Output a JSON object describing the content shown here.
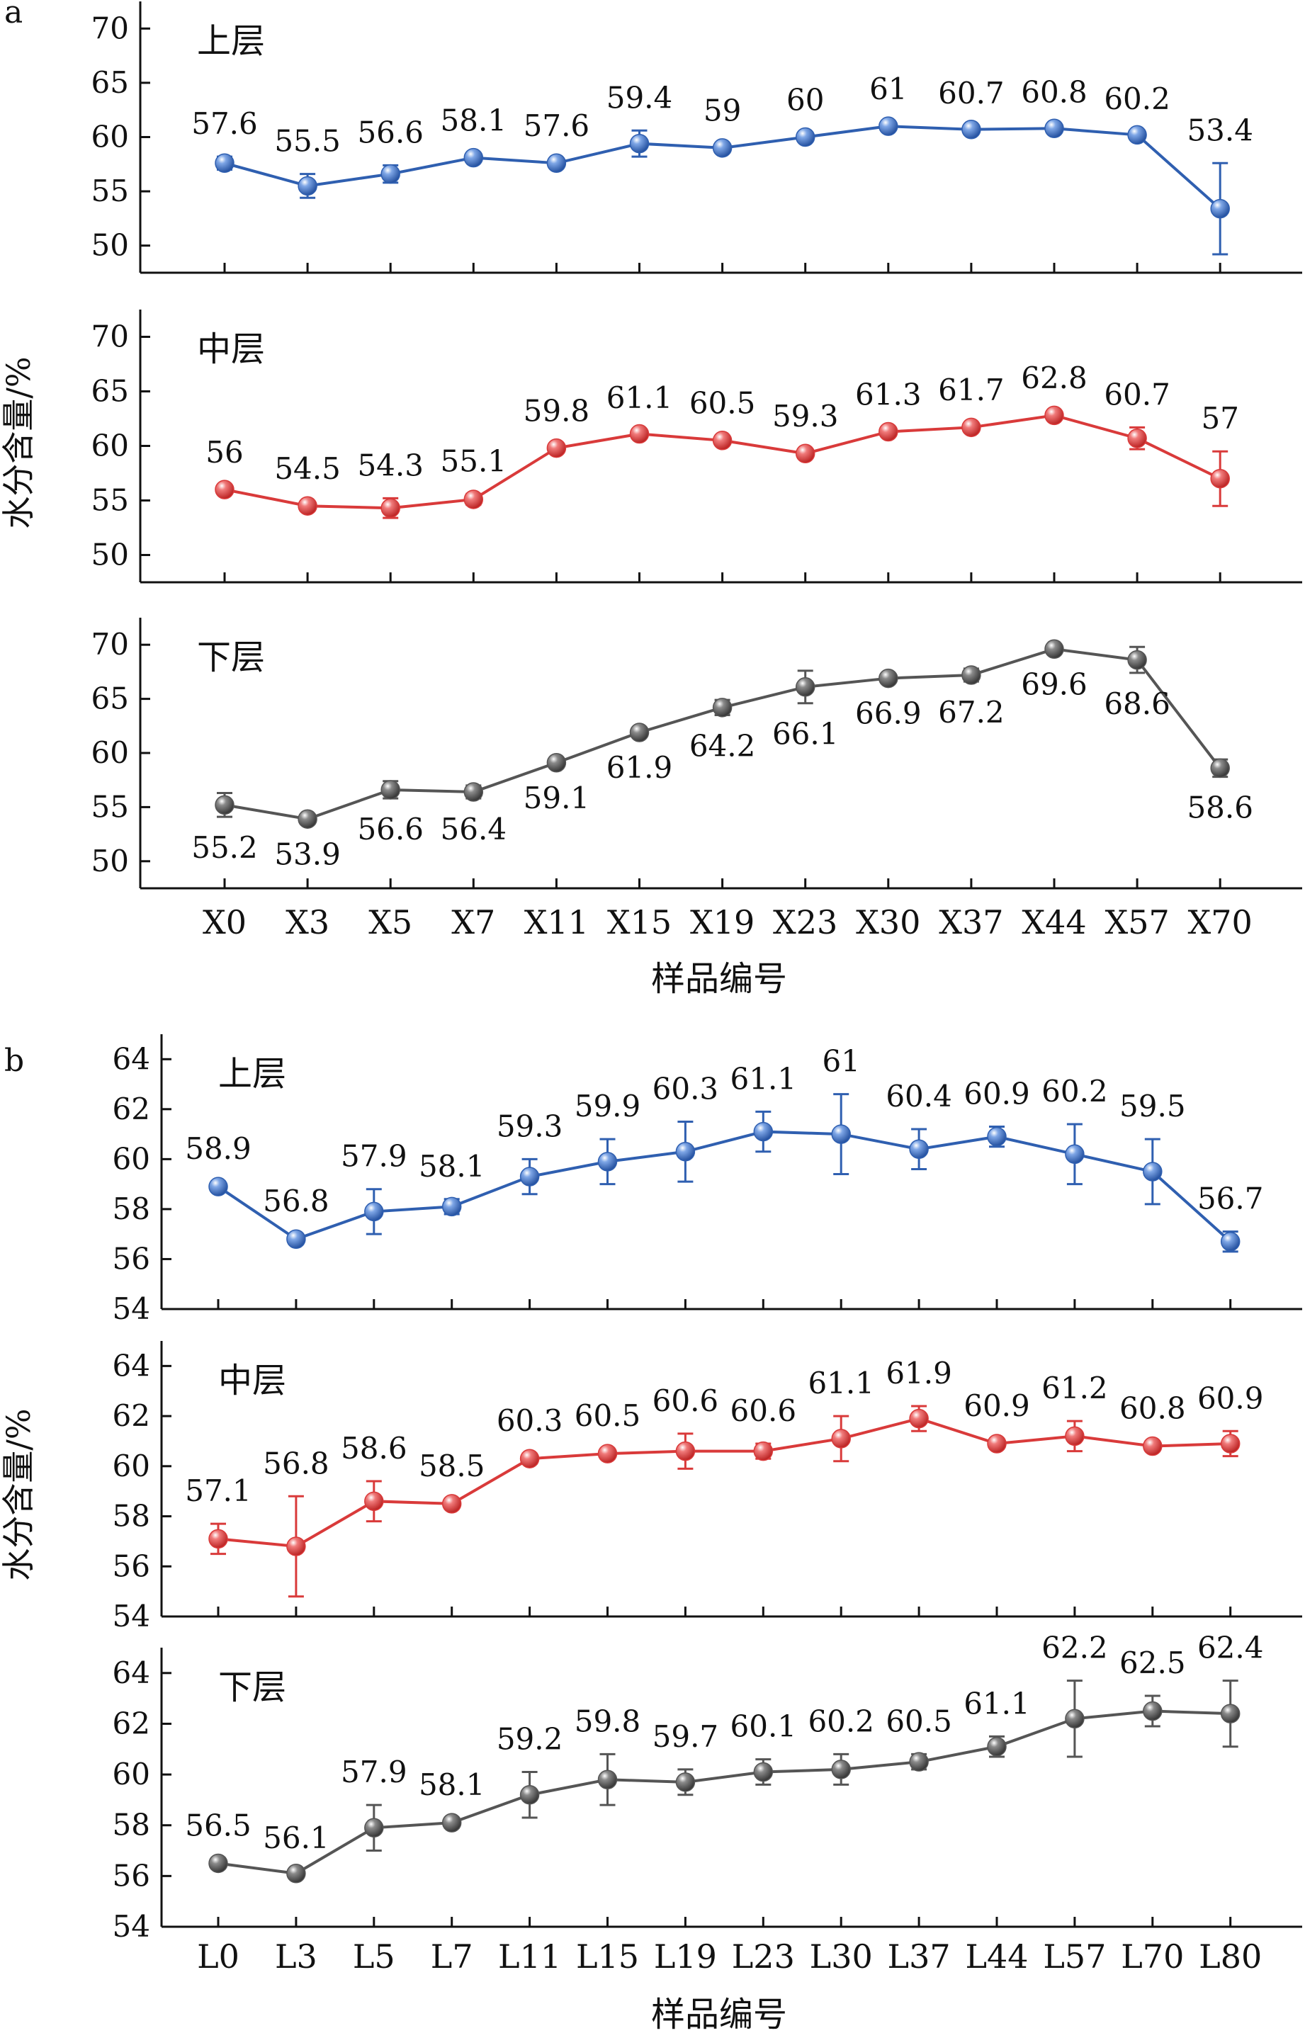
{
  "chart_data": [
    {
      "type": "line",
      "panel_label": "a",
      "ylabel": "水分含量/%",
      "xlabel": "样品编号",
      "categories": [
        "X0",
        "X3",
        "X5",
        "X7",
        "X11",
        "X15",
        "X19",
        "X23",
        "X30",
        "X37",
        "X44",
        "X57",
        "X70"
      ],
      "ylim": [
        47.5,
        72.5
      ],
      "yticks": [
        50,
        55,
        60,
        65,
        70
      ],
      "grid": false,
      "error_bars": true,
      "series": [
        {
          "name": "上层",
          "color": "#2f5fb0",
          "values": [
            57.6,
            55.5,
            56.6,
            58.1,
            57.6,
            59.4,
            59,
            60,
            61,
            60.7,
            60.8,
            60.2,
            53.4
          ],
          "labels": [
            "57.6",
            "55.5",
            "56.6",
            "58.1",
            "57.6",
            "59.4",
            "59",
            "60",
            "61",
            "60.7",
            "60.8",
            "60.2",
            "53.4"
          ],
          "errors": [
            0.6,
            1.1,
            0.8,
            0.4,
            0.4,
            1.2,
            0.4,
            0.4,
            0.4,
            0.3,
            0.3,
            0.3,
            4.2
          ]
        },
        {
          "name": "中层",
          "color": "#d93a3a",
          "values": [
            56,
            54.5,
            54.3,
            55.1,
            59.8,
            61.1,
            60.5,
            59.3,
            61.3,
            61.7,
            62.8,
            60.7,
            57
          ],
          "labels": [
            "56",
            "54.5",
            "54.3",
            "55.1",
            "59.8",
            "61.1",
            "60.5",
            "59.3",
            "61.3",
            "61.7",
            "62.8",
            "60.7",
            "57"
          ],
          "errors": [
            0.4,
            0.4,
            0.9,
            0.5,
            0.4,
            0.3,
            0.4,
            0.4,
            0.4,
            0.4,
            0.4,
            1.0,
            2.5
          ]
        },
        {
          "name": "下层",
          "color": "#555555",
          "values": [
            55.2,
            53.9,
            56.6,
            56.4,
            59.1,
            61.9,
            64.2,
            66.1,
            66.9,
            67.2,
            69.6,
            68.6,
            58.6
          ],
          "labels": [
            "55.2",
            "53.9",
            "56.6",
            "56.4",
            "59.1",
            "61.9",
            "64.2",
            "66.1",
            "66.9",
            "67.2",
            "69.6",
            "68.6",
            "58.6"
          ],
          "errors": [
            1.1,
            0.4,
            0.8,
            0.6,
            0.4,
            0.4,
            0.7,
            1.5,
            0.4,
            0.6,
            0.4,
            1.2,
            0.8
          ]
        }
      ]
    },
    {
      "type": "line",
      "panel_label": "b",
      "ylabel": "水分含量/%",
      "xlabel": "样品编号",
      "categories": [
        "L0",
        "L3",
        "L5",
        "L7",
        "L11",
        "L15",
        "L19",
        "L23",
        "L30",
        "L37",
        "L44",
        "L57",
        "L70",
        "L80"
      ],
      "ylim": [
        54,
        65
      ],
      "yticks": [
        54,
        56,
        58,
        60,
        62,
        64
      ],
      "grid": false,
      "error_bars": true,
      "series": [
        {
          "name": "上层",
          "color": "#2f5fb0",
          "values": [
            58.9,
            56.8,
            57.9,
            58.1,
            59.3,
            59.9,
            60.3,
            61.1,
            61,
            60.4,
            60.9,
            60.2,
            59.5,
            56.7
          ],
          "labels": [
            "58.9",
            "56.8",
            "57.9",
            "58.1",
            "59.3",
            "59.9",
            "60.3",
            "61.1",
            "61",
            "60.4",
            "60.9",
            "60.2",
            "59.5",
            "56.7"
          ],
          "errors": [
            0.2,
            0.2,
            0.9,
            0.3,
            0.7,
            0.9,
            1.2,
            0.8,
            1.6,
            0.8,
            0.4,
            1.2,
            1.3,
            0.4
          ]
        },
        {
          "name": "中层",
          "color": "#d93a3a",
          "values": [
            57.1,
            56.8,
            58.6,
            58.5,
            60.3,
            60.5,
            60.6,
            60.6,
            61.1,
            61.9,
            60.9,
            61.2,
            60.8,
            60.9
          ],
          "labels": [
            "57.1",
            "56.8",
            "58.6",
            "58.5",
            "60.3",
            "60.5",
            "60.6",
            "60.6",
            "61.1",
            "61.9",
            "60.9",
            "61.2",
            "60.8",
            "60.9"
          ],
          "errors": [
            0.6,
            2.0,
            0.8,
            0.2,
            0.2,
            0.2,
            0.7,
            0.3,
            0.9,
            0.5,
            0.2,
            0.6,
            0.2,
            0.5
          ]
        },
        {
          "name": "下层",
          "color": "#555555",
          "values": [
            56.5,
            56.1,
            57.9,
            58.1,
            59.2,
            59.8,
            59.7,
            60.1,
            60.2,
            60.5,
            61.1,
            62.2,
            62.5,
            62.4
          ],
          "labels": [
            "56.5",
            "56.1",
            "57.9",
            "58.1",
            "59.2",
            "59.8",
            "59.7",
            "60.1",
            "60.2",
            "60.5",
            "61.1",
            "62.2",
            "62.5",
            "62.4"
          ],
          "errors": [
            0.2,
            0.1,
            0.9,
            0.2,
            0.9,
            1.0,
            0.5,
            0.5,
            0.6,
            0.3,
            0.4,
            1.5,
            0.6,
            1.3
          ]
        }
      ]
    }
  ]
}
